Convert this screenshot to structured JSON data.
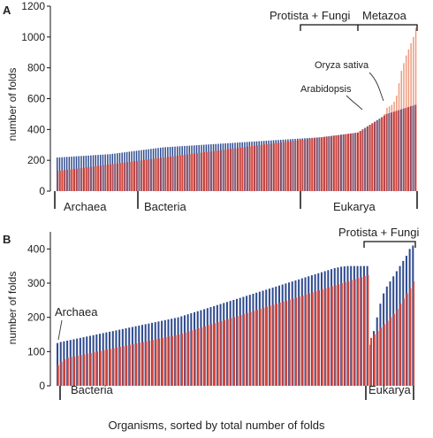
{
  "figure": {
    "shared_xlabel": "Organisms, sorted by total number of folds"
  },
  "colors": {
    "blue": "#2f4b8f",
    "red": "#d2443a",
    "orange": "#ee9b80"
  },
  "chart_data": [
    {
      "panel": "A",
      "type": "bar",
      "ylabel": "number of folds",
      "ylim": [
        0,
        1200
      ],
      "yticks": [
        0,
        200,
        400,
        600,
        800,
        1000,
        1200
      ],
      "n_organisms": 150,
      "series": [
        {
          "name": "blue",
          "values": [
            218,
            219,
            220,
            221,
            222,
            223,
            224,
            225,
            226,
            227,
            228,
            229,
            230,
            231,
            232,
            233,
            234,
            235,
            236,
            237,
            238,
            239,
            240,
            242,
            244,
            246,
            248,
            250,
            252,
            254,
            256,
            258,
            260,
            262,
            264,
            266,
            268,
            270,
            272,
            274,
            276,
            278,
            280,
            282,
            284,
            285,
            286,
            287,
            288,
            289,
            290,
            291,
            292,
            293,
            294,
            295,
            296,
            297,
            298,
            299,
            300,
            301,
            302,
            303,
            304,
            305,
            306,
            307,
            308,
            309,
            310,
            311,
            312,
            313,
            314,
            315,
            316,
            317,
            318,
            319,
            320,
            321,
            322,
            323,
            324,
            325,
            326,
            327,
            328,
            329,
            330,
            331,
            332,
            333,
            334,
            335,
            336,
            337,
            338,
            339,
            340,
            341,
            342,
            343,
            344,
            345,
            346,
            347,
            348,
            349,
            350,
            352,
            354,
            356,
            358,
            360,
            362,
            364,
            366,
            368,
            370,
            372,
            374,
            376,
            378,
            380,
            390,
            400,
            410,
            420,
            430,
            440,
            450,
            460,
            470,
            480,
            490,
            500,
            505,
            510,
            515,
            520,
            525,
            530,
            535,
            540,
            545,
            550,
            555,
            560
          ]
        },
        {
          "name": "red",
          "values": [
            130,
            132,
            134,
            136,
            138,
            140,
            142,
            144,
            146,
            148,
            150,
            152,
            154,
            156,
            158,
            160,
            162,
            164,
            166,
            168,
            170,
            172,
            174,
            176,
            178,
            180,
            182,
            184,
            186,
            188,
            190,
            192,
            194,
            196,
            198,
            200,
            202,
            204,
            206,
            208,
            210,
            212,
            214,
            216,
            218,
            220,
            222,
            224,
            226,
            228,
            230,
            232,
            234,
            236,
            238,
            240,
            242,
            244,
            246,
            248,
            250,
            252,
            254,
            256,
            258,
            260,
            262,
            264,
            266,
            268,
            270,
            272,
            274,
            276,
            278,
            280,
            282,
            284,
            286,
            288,
            290,
            292,
            294,
            296,
            298,
            300,
            302,
            304,
            306,
            308,
            310,
            312,
            314,
            316,
            318,
            320,
            322,
            324,
            326,
            328,
            330,
            332,
            334,
            336,
            338,
            340,
            342,
            344,
            346,
            348,
            350,
            352,
            354,
            356,
            358,
            360,
            362,
            364,
            366,
            368,
            370,
            372,
            374,
            376,
            378,
            380,
            390,
            400,
            410,
            420,
            430,
            440,
            450,
            460,
            470,
            480,
            490,
            500,
            505,
            510,
            515,
            520,
            525,
            530,
            535,
            540,
            545,
            550,
            555,
            560
          ]
        },
        {
          "name": "orange",
          "values": [
            130,
            132,
            134,
            136,
            138,
            140,
            142,
            144,
            146,
            148,
            150,
            152,
            154,
            156,
            158,
            160,
            162,
            164,
            166,
            168,
            170,
            172,
            174,
            176,
            178,
            180,
            182,
            184,
            186,
            188,
            190,
            192,
            194,
            196,
            198,
            200,
            202,
            204,
            206,
            208,
            210,
            212,
            214,
            216,
            218,
            220,
            222,
            224,
            226,
            228,
            230,
            232,
            234,
            236,
            238,
            240,
            242,
            244,
            246,
            248,
            250,
            252,
            254,
            256,
            258,
            260,
            262,
            264,
            266,
            268,
            270,
            272,
            274,
            276,
            278,
            280,
            282,
            284,
            286,
            288,
            290,
            292,
            294,
            296,
            298,
            300,
            302,
            304,
            306,
            308,
            310,
            312,
            314,
            316,
            318,
            320,
            322,
            324,
            326,
            328,
            330,
            332,
            334,
            336,
            338,
            340,
            342,
            344,
            346,
            348,
            350,
            352,
            354,
            356,
            358,
            360,
            362,
            364,
            366,
            368,
            370,
            372,
            374,
            376,
            378,
            380,
            390,
            400,
            410,
            420,
            430,
            440,
            450,
            460,
            470,
            480,
            500,
            540,
            550,
            560,
            580,
            620,
            700,
            780,
            830,
            880,
            920,
            960,
            1000,
            1060
          ]
        }
      ],
      "group_labels": [
        "Archaea",
        "Bacteria",
        "Eukarya"
      ],
      "top_brackets": [
        "Protista + Fungi",
        "Metazoa"
      ],
      "annotations": [
        "Oryza sativa",
        "Arabidopsis"
      ]
    },
    {
      "panel": "B",
      "type": "bar",
      "ylabel": "number of folds",
      "ylim": [
        0,
        450
      ],
      "yticks": [
        0,
        100,
        200,
        300,
        400
      ],
      "n_organisms": 110,
      "series": [
        {
          "name": "blue",
          "values": [
            125,
            128,
            130,
            132,
            134,
            136,
            138,
            140,
            142,
            144,
            146,
            148,
            150,
            152,
            154,
            156,
            158,
            160,
            162,
            164,
            166,
            168,
            170,
            172,
            174,
            176,
            178,
            180,
            182,
            184,
            186,
            188,
            190,
            192,
            194,
            196,
            198,
            200,
            203,
            206,
            209,
            212,
            215,
            218,
            221,
            224,
            227,
            230,
            233,
            236,
            239,
            242,
            245,
            248,
            251,
            254,
            257,
            260,
            263,
            266,
            269,
            272,
            275,
            278,
            281,
            284,
            287,
            290,
            293,
            296,
            299,
            302,
            305,
            308,
            311,
            314,
            317,
            320,
            323,
            326,
            329,
            332,
            335,
            338,
            341,
            344,
            346,
            348,
            349,
            350,
            350,
            350,
            350,
            350,
            350,
            350,
            120,
            160,
            200,
            240,
            270,
            290,
            305,
            320,
            335,
            350,
            365,
            380,
            400,
            410
          ]
        },
        {
          "name": "red",
          "values": [
            60,
            70,
            78,
            82,
            84,
            86,
            88,
            90,
            92,
            94,
            96,
            98,
            100,
            102,
            104,
            106,
            108,
            110,
            112,
            114,
            116,
            118,
            120,
            122,
            124,
            126,
            128,
            130,
            132,
            134,
            136,
            138,
            140,
            142,
            144,
            146,
            148,
            150,
            153,
            156,
            159,
            162,
            165,
            168,
            171,
            174,
            177,
            180,
            183,
            186,
            189,
            192,
            195,
            198,
            201,
            204,
            207,
            210,
            213,
            216,
            219,
            222,
            225,
            228,
            231,
            234,
            237,
            240,
            243,
            246,
            249,
            252,
            255,
            258,
            261,
            264,
            267,
            270,
            273,
            276,
            279,
            282,
            285,
            288,
            291,
            294,
            297,
            300,
            303,
            306,
            309,
            312,
            315,
            318,
            321,
            324,
            140,
            150,
            160,
            170,
            180,
            190,
            200,
            210,
            225,
            240,
            255,
            270,
            285,
            305
          ]
        }
      ],
      "group_labels": [
        "Bacteria",
        "Eukarya"
      ],
      "top_brackets": [
        "Protista + Fungi"
      ],
      "annotations": [
        "Archaea"
      ]
    }
  ]
}
